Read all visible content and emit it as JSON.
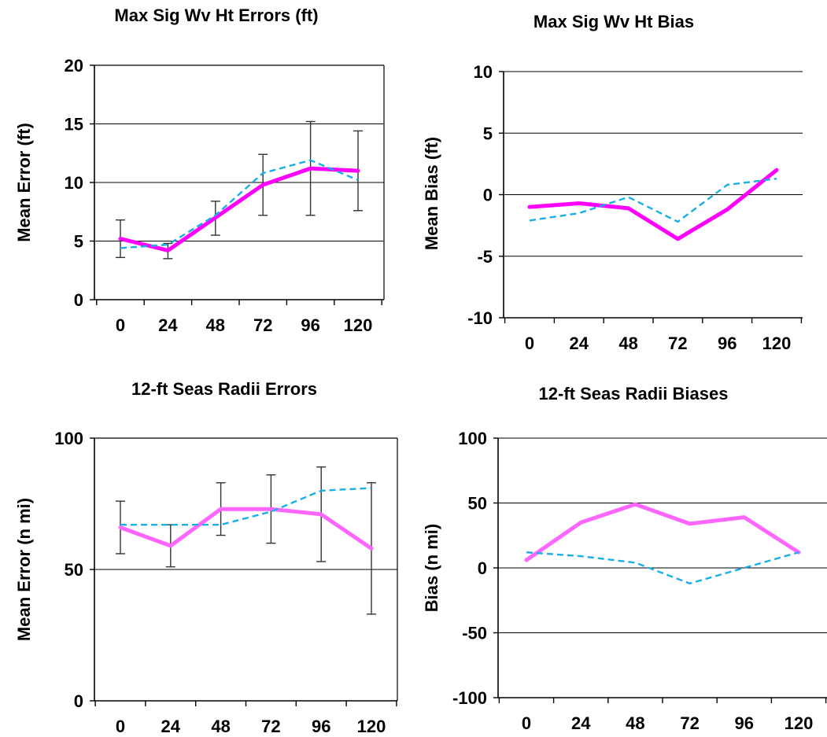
{
  "chart_data": [
    {
      "type": "line",
      "title": "Max Sig Wv Ht Errors (ft)",
      "xlabel": "",
      "ylabel": "Mean Error (ft)",
      "categories": [
        "0",
        "24",
        "48",
        "72",
        "96",
        "120"
      ],
      "ylim": [
        0,
        20
      ],
      "yticks": [
        0,
        5,
        10,
        15,
        20
      ],
      "grid": true,
      "series": [
        {
          "color": "#ff00ff",
          "style": "solid",
          "values": [
            5.2,
            4.2,
            7.0,
            9.8,
            11.2,
            11.0
          ]
        },
        {
          "color": "#1aaee6",
          "style": "dashed",
          "values": [
            4.4,
            4.7,
            7.2,
            10.8,
            11.9,
            10.2
          ]
        }
      ],
      "error_bars": [
        {
          "center": 5.2,
          "low": 3.6,
          "high": 6.8
        },
        {
          "center": 4.2,
          "low": 3.5,
          "high": 4.8
        },
        {
          "center": 7.0,
          "low": 5.5,
          "high": 8.4
        },
        {
          "center": 9.8,
          "low": 7.2,
          "high": 12.4
        },
        {
          "center": 11.2,
          "low": 7.2,
          "high": 15.2
        },
        {
          "center": 11.0,
          "low": 7.6,
          "high": 14.4
        }
      ]
    },
    {
      "type": "line",
      "title": "Max Sig Wv Ht Bias",
      "xlabel": "",
      "ylabel": "Mean Bias (ft)",
      "categories": [
        "0",
        "24",
        "48",
        "72",
        "96",
        "120"
      ],
      "ylim": [
        -10,
        10
      ],
      "yticks": [
        -10,
        -5,
        0,
        5,
        10
      ],
      "grid": true,
      "series": [
        {
          "color": "#ff00ff",
          "style": "solid",
          "values": [
            -1.0,
            -0.7,
            -1.1,
            -3.6,
            -1.2,
            2.0
          ]
        },
        {
          "color": "#1aaee6",
          "style": "dashed",
          "values": [
            -2.1,
            -1.5,
            -0.2,
            -2.2,
            0.8,
            1.3
          ]
        }
      ]
    },
    {
      "type": "line",
      "title": "12-ft Seas Radii Errors",
      "xlabel": "",
      "ylabel": "Mean Error (n mi)",
      "categories": [
        "0",
        "24",
        "48",
        "72",
        "96",
        "120"
      ],
      "ylim": [
        0,
        100
      ],
      "yticks": [
        0,
        50,
        100
      ],
      "grid": true,
      "series": [
        {
          "color": "#ff66ff",
          "style": "solid",
          "values": [
            66,
            59,
            73,
            73,
            71,
            58
          ]
        },
        {
          "color": "#1aaee6",
          "style": "dashed",
          "values": [
            67,
            67,
            67,
            72,
            80,
            81
          ]
        }
      ],
      "error_bars": [
        {
          "center": 66,
          "low": 56,
          "high": 76
        },
        {
          "center": 59,
          "low": 51,
          "high": 67
        },
        {
          "center": 73,
          "low": 63,
          "high": 83
        },
        {
          "center": 73,
          "low": 60,
          "high": 86
        },
        {
          "center": 71,
          "low": 53,
          "high": 89
        },
        {
          "center": 58,
          "low": 33,
          "high": 83
        }
      ]
    },
    {
      "type": "line",
      "title": "12-ft Seas Radii Biases",
      "xlabel": "",
      "ylabel": "Bias (n mi)",
      "categories": [
        "0",
        "24",
        "48",
        "72",
        "96",
        "120"
      ],
      "ylim": [
        -100,
        100
      ],
      "yticks": [
        -100,
        -50,
        0,
        50,
        100
      ],
      "grid": true,
      "series": [
        {
          "color": "#ff66ff",
          "style": "solid",
          "values": [
            6,
            35,
            49,
            34,
            39,
            12
          ]
        },
        {
          "color": "#1aaee6",
          "style": "dashed",
          "values": [
            12,
            9,
            4,
            -12,
            0,
            12
          ]
        }
      ]
    }
  ]
}
